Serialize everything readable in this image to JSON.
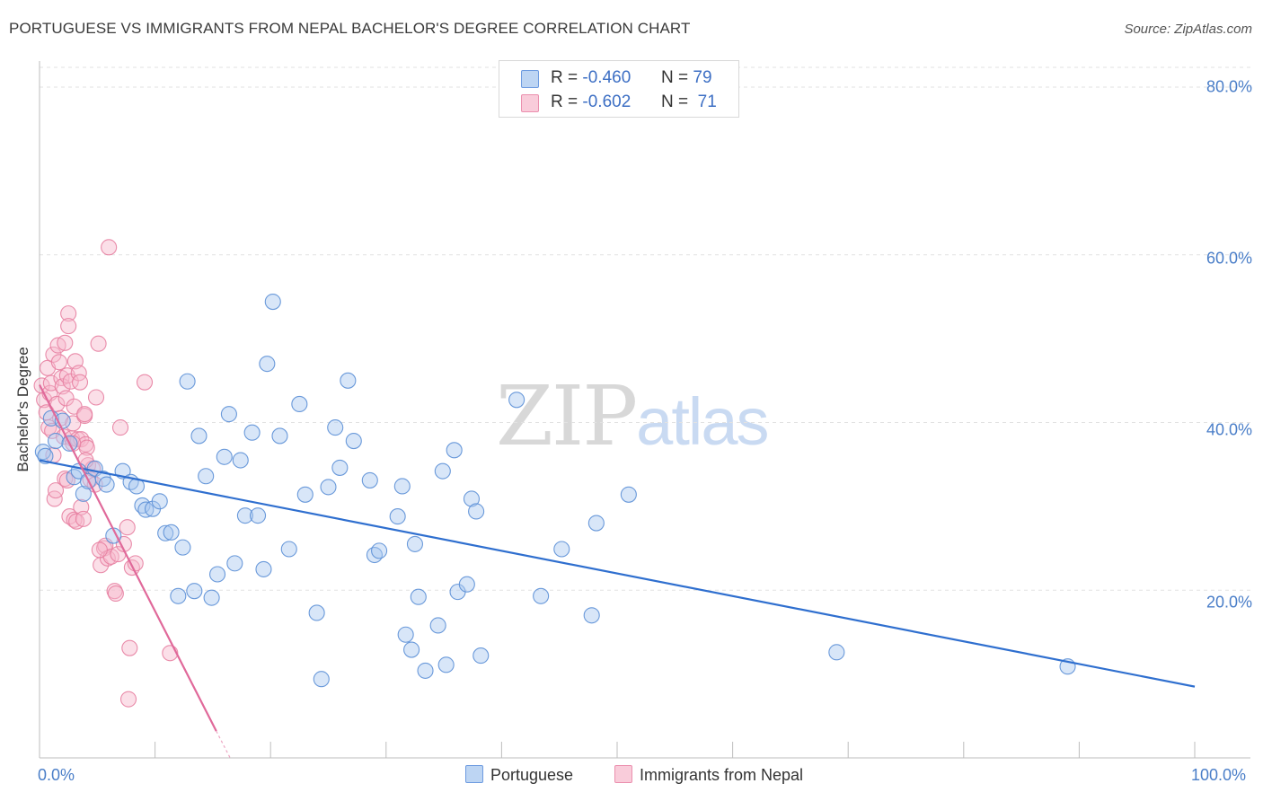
{
  "title": "PORTUGUESE VS IMMIGRANTS FROM NEPAL BACHELOR'S DEGREE CORRELATION CHART",
  "source": "Source: ZipAtlas.com",
  "watermark": {
    "zip": "ZIP",
    "atlas": "atlas"
  },
  "colors": {
    "blue_fill": "#a9c8ef",
    "blue_stroke": "#5b8fd6",
    "blue_line": "#2f6fcf",
    "pink_fill": "#f6b7cb",
    "pink_stroke": "#e77fa1",
    "pink_line": "#e0699a",
    "grid": "#e2e2e2",
    "axis_text": "#4a7ec8"
  },
  "legend_top": [
    {
      "swatch": "blue",
      "r_label": "R =",
      "r_value": "-0.460",
      "n_label": "N =",
      "n_value": "79"
    },
    {
      "swatch": "pink",
      "r_label": "R =",
      "r_value": "-0.602",
      "n_label": "N =",
      "n_value": "71"
    }
  ],
  "legend_bottom": [
    {
      "swatch": "blue",
      "label": "Portuguese"
    },
    {
      "swatch": "pink",
      "label": "Immigrants from Nepal"
    }
  ],
  "chart_data": {
    "type": "scatter",
    "title": "PORTUGUESE VS IMMIGRANTS FROM NEPAL BACHELOR'S DEGREE CORRELATION CHART",
    "xlabel": "",
    "ylabel": "Bachelor's Degree",
    "xlim": [
      0,
      100
    ],
    "ylim": [
      0,
      80
    ],
    "grid": true,
    "x_tick_labels": {
      "left": "0.0%",
      "right": "100.0%"
    },
    "y_ticks": [
      {
        "value": 20,
        "label": "20.0%"
      },
      {
        "value": 40,
        "label": "40.0%"
      },
      {
        "value": 60,
        "label": "60.0%"
      },
      {
        "value": 80,
        "label": "80.0%"
      }
    ],
    "legend_position": "top-center",
    "series": [
      {
        "name": "Portuguese",
        "color": "blue",
        "r": -0.46,
        "n": 79,
        "trend": {
          "x0": 0,
          "y0": 35.5,
          "x1": 100,
          "y1": 8.5
        },
        "points": [
          [
            0.3,
            36.5
          ],
          [
            0.5,
            36.0
          ],
          [
            1.0,
            40.5
          ],
          [
            1.4,
            37.8
          ],
          [
            2.0,
            40.2
          ],
          [
            2.6,
            37.5
          ],
          [
            3.0,
            33.5
          ],
          [
            3.4,
            34.2
          ],
          [
            3.8,
            31.5
          ],
          [
            4.2,
            33.0
          ],
          [
            4.8,
            34.5
          ],
          [
            5.5,
            33.3
          ],
          [
            5.8,
            32.6
          ],
          [
            6.4,
            26.5
          ],
          [
            7.2,
            34.2
          ],
          [
            7.9,
            32.9
          ],
          [
            8.4,
            32.4
          ],
          [
            8.9,
            30.1
          ],
          [
            9.2,
            29.6
          ],
          [
            9.8,
            29.7
          ],
          [
            10.4,
            30.6
          ],
          [
            10.9,
            26.8
          ],
          [
            11.4,
            26.9
          ],
          [
            12.0,
            19.3
          ],
          [
            12.4,
            25.1
          ],
          [
            12.8,
            44.9
          ],
          [
            13.4,
            19.9
          ],
          [
            13.8,
            38.4
          ],
          [
            14.4,
            33.6
          ],
          [
            14.9,
            19.1
          ],
          [
            15.4,
            21.9
          ],
          [
            16.0,
            35.9
          ],
          [
            16.4,
            41.0
          ],
          [
            16.9,
            23.2
          ],
          [
            17.4,
            35.5
          ],
          [
            17.8,
            28.9
          ],
          [
            18.4,
            38.8
          ],
          [
            18.9,
            28.9
          ],
          [
            19.4,
            22.5
          ],
          [
            19.7,
            47.0
          ],
          [
            20.2,
            54.4
          ],
          [
            20.8,
            38.4
          ],
          [
            21.6,
            24.9
          ],
          [
            22.5,
            42.2
          ],
          [
            23.0,
            31.4
          ],
          [
            24.0,
            17.3
          ],
          [
            24.4,
            9.4
          ],
          [
            25.0,
            32.3
          ],
          [
            25.6,
            39.4
          ],
          [
            26.0,
            34.6
          ],
          [
            26.7,
            45.0
          ],
          [
            27.2,
            37.8
          ],
          [
            28.6,
            33.1
          ],
          [
            29.0,
            24.2
          ],
          [
            29.4,
            24.7
          ],
          [
            31.0,
            28.8
          ],
          [
            31.4,
            32.4
          ],
          [
            31.7,
            14.7
          ],
          [
            32.2,
            12.9
          ],
          [
            32.5,
            25.5
          ],
          [
            32.8,
            19.2
          ],
          [
            33.4,
            10.4
          ],
          [
            34.5,
            15.8
          ],
          [
            34.9,
            34.2
          ],
          [
            35.2,
            11.1
          ],
          [
            35.9,
            36.7
          ],
          [
            36.2,
            19.8
          ],
          [
            37.0,
            20.7
          ],
          [
            37.4,
            30.9
          ],
          [
            37.8,
            29.4
          ],
          [
            38.2,
            12.2
          ],
          [
            41.3,
            42.7
          ],
          [
            43.4,
            19.3
          ],
          [
            45.2,
            24.9
          ],
          [
            47.8,
            17.0
          ],
          [
            48.2,
            28.0
          ],
          [
            51.0,
            31.4
          ],
          [
            69.0,
            12.6
          ],
          [
            89.0,
            10.9
          ]
        ]
      },
      {
        "name": "Immigrants from Nepal",
        "color": "pink",
        "r": -0.602,
        "n": 71,
        "trend": {
          "x0": 0,
          "y0": 44.5,
          "x1": 15.3,
          "y1": 3.2,
          "dash_to_x": 16.5,
          "dash_to_y": 0
        },
        "points": [
          [
            0.2,
            44.4
          ],
          [
            0.4,
            42.7
          ],
          [
            0.6,
            41.2
          ],
          [
            0.7,
            46.5
          ],
          [
            0.8,
            39.4
          ],
          [
            0.9,
            43.5
          ],
          [
            1.0,
            44.7
          ],
          [
            1.1,
            39.0
          ],
          [
            1.2,
            48.1
          ],
          [
            1.2,
            36.1
          ],
          [
            1.3,
            30.9
          ],
          [
            1.4,
            31.9
          ],
          [
            1.5,
            42.2
          ],
          [
            1.6,
            49.2
          ],
          [
            1.7,
            47.2
          ],
          [
            1.8,
            40.5
          ],
          [
            1.9,
            45.3
          ],
          [
            2.0,
            44.3
          ],
          [
            2.1,
            38.3
          ],
          [
            2.2,
            49.5
          ],
          [
            2.2,
            33.3
          ],
          [
            2.3,
            42.9
          ],
          [
            2.4,
            45.6
          ],
          [
            2.4,
            33.1
          ],
          [
            2.5,
            53.0
          ],
          [
            2.5,
            51.5
          ],
          [
            2.6,
            28.8
          ],
          [
            2.7,
            44.9
          ],
          [
            2.8,
            38.1
          ],
          [
            2.9,
            39.9
          ],
          [
            3.0,
            41.9
          ],
          [
            3.0,
            28.4
          ],
          [
            3.1,
            47.3
          ],
          [
            3.2,
            28.2
          ],
          [
            3.3,
            38.0
          ],
          [
            3.4,
            45.9
          ],
          [
            3.5,
            44.8
          ],
          [
            3.6,
            29.9
          ],
          [
            3.6,
            38.0
          ],
          [
            3.8,
            28.5
          ],
          [
            3.9,
            40.8
          ],
          [
            3.9,
            41.0
          ],
          [
            4.0,
            37.4
          ],
          [
            4.1,
            37.0
          ],
          [
            4.2,
            34.9
          ],
          [
            4.4,
            33.2
          ],
          [
            4.6,
            34.5
          ],
          [
            4.8,
            32.6
          ],
          [
            4.9,
            43.0
          ],
          [
            5.1,
            49.4
          ],
          [
            5.3,
            23.0
          ],
          [
            5.6,
            25.0
          ],
          [
            5.7,
            25.3
          ],
          [
            5.9,
            23.8
          ],
          [
            6.0,
            60.9
          ],
          [
            6.2,
            24.0
          ],
          [
            6.5,
            19.9
          ],
          [
            6.6,
            19.6
          ],
          [
            6.8,
            24.3
          ],
          [
            7.0,
            39.4
          ],
          [
            7.6,
            27.5
          ],
          [
            7.8,
            13.1
          ],
          [
            8.0,
            22.7
          ],
          [
            8.3,
            23.2
          ],
          [
            9.1,
            44.8
          ],
          [
            7.3,
            25.5
          ],
          [
            7.7,
            7.0
          ],
          [
            11.3,
            12.5
          ],
          [
            5.2,
            24.8
          ],
          [
            4.0,
            35.5
          ],
          [
            2.9,
            37.5
          ]
        ]
      }
    ]
  }
}
